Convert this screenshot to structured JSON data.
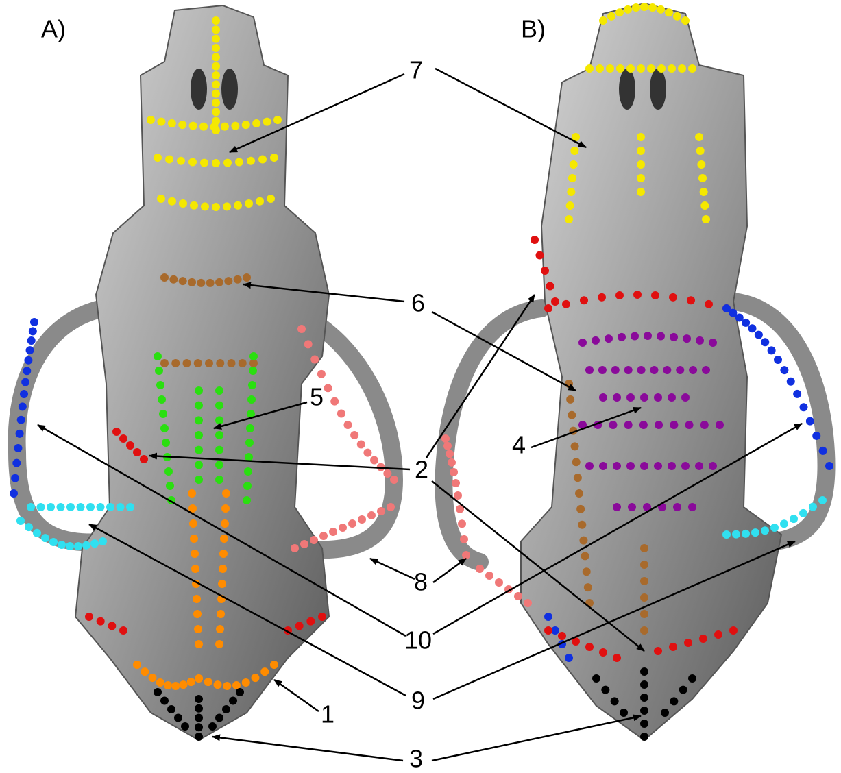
{
  "panels": [
    {
      "label": "A)"
    },
    {
      "label": "B)"
    }
  ],
  "annotations": [
    {
      "label": "7"
    },
    {
      "label": "6"
    },
    {
      "label": "5"
    },
    {
      "label": "2"
    },
    {
      "label": "4"
    },
    {
      "label": "8"
    },
    {
      "label": "10"
    },
    {
      "label": "9"
    },
    {
      "label": "1"
    },
    {
      "label": "3"
    }
  ]
}
